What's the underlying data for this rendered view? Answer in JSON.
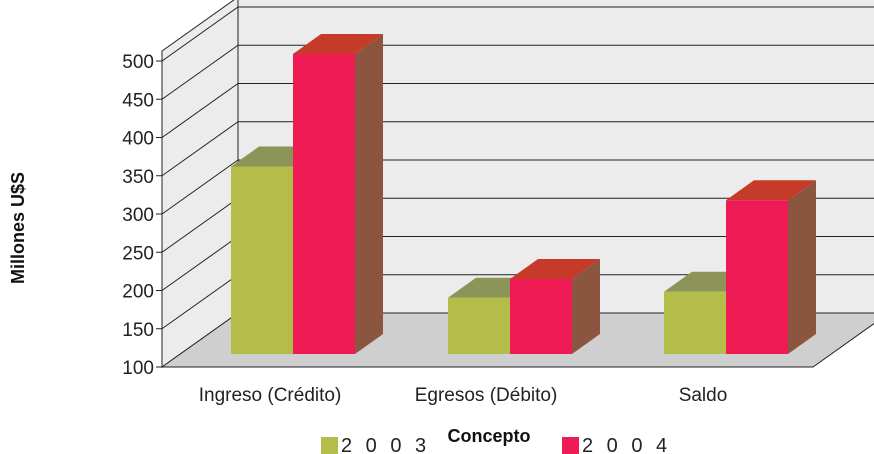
{
  "chart_data": {
    "type": "bar",
    "categories": [
      "Ingreso (Crédito)",
      "Egresos (Débito)",
      "Saldo"
    ],
    "series": [
      {
        "name": "2 0 0 3",
        "values": [
          350,
          175,
          183
        ],
        "color": "#b5bd4a"
      },
      {
        "name": "2 0 0 4",
        "values": [
          500,
          200,
          305
        ],
        "color": "#ef1b55"
      }
    ],
    "xlabel": "Concepto",
    "ylabel": "Millones U$S",
    "ylim": [
      100,
      500
    ],
    "yticks": [
      100,
      150,
      200,
      250,
      300,
      350,
      400,
      450,
      500
    ],
    "grid": true,
    "legend_position": "bottom",
    "style": "3d-bar",
    "colors": {
      "wall": "#ececec",
      "floor": "#cfcfcf",
      "grid": "#222222",
      "side_2003": "#8a9a3a",
      "top_2003": "#8d9457",
      "side_2004": "#8b5540",
      "top_2004": "#c63a2a"
    }
  }
}
